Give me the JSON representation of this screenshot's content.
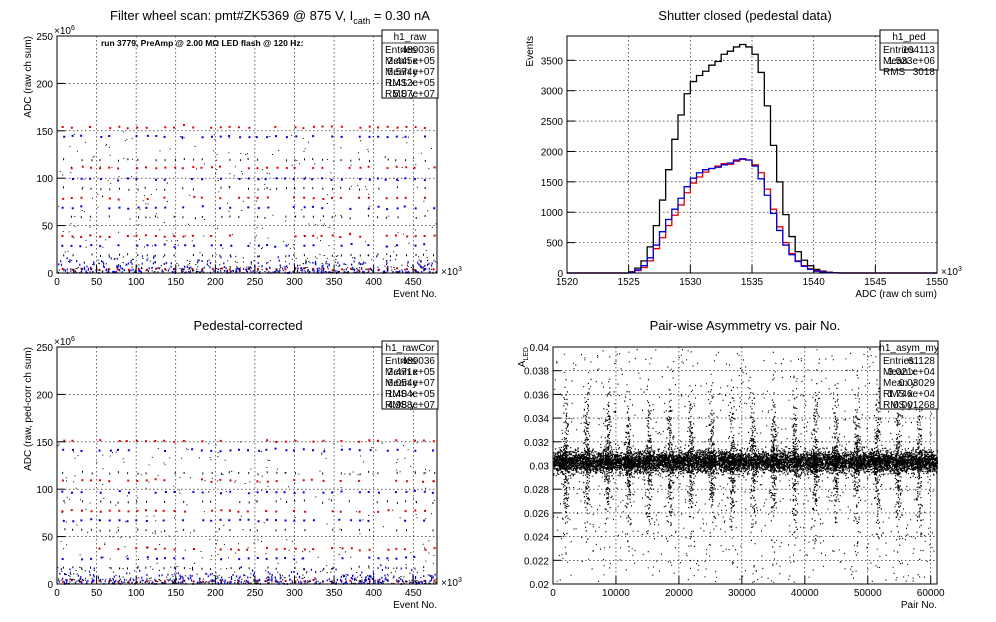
{
  "colors": {
    "red": "#e00000",
    "blue": "#0000dd",
    "black": "#000000"
  },
  "chart_data": [
    {
      "type": "scatter",
      "title": "Filter wheel scan: pmt#ZK5369 @   875 V, I",
      "title_sub": "cath",
      "title_tail": " = 0.30 nA",
      "annotation": "run 3779, PreAmp @ 2.00 MΩ LED flash @  120 Hz:",
      "xlabel": "Event No.",
      "ylabel": "ADC (raw ch sum)",
      "x_multiplier": "×10",
      "x_mult_exp": "3",
      "y_multiplier": "×10",
      "y_mult_exp": "6",
      "xlim": [
        0,
        480
      ],
      "ylim": [
        0,
        250
      ],
      "xticks": [
        0,
        50,
        100,
        150,
        200,
        250,
        300,
        350,
        400,
        450
      ],
      "yticks": [
        0,
        50,
        100,
        150,
        200,
        250
      ],
      "grid": true,
      "levels": [
        155,
        145,
        120,
        112,
        100,
        90,
        80,
        70,
        60,
        40,
        30,
        20,
        5
      ],
      "stats": {
        "name": "h1_raw",
        "rows": [
          {
            "label": "Entries",
            "value": "489036"
          },
          {
            "label": "Mean x",
            "value": "2.445e+05"
          },
          {
            "label": "Mean y",
            "value": "5.574e+07"
          },
          {
            "label": "RMS x",
            "value": "1.412e+05"
          },
          {
            "label": "RMS y",
            "value": "5.07e+07"
          }
        ]
      }
    },
    {
      "type": "line",
      "title": "Shutter closed (pedestal data)",
      "xlabel": "ADC (raw ch sum)",
      "ylabel": "Events",
      "x_multiplier": "×10",
      "x_mult_exp": "3",
      "xlim": [
        1520,
        1550
      ],
      "ylim": [
        0,
        3900
      ],
      "xticks": [
        1520,
        1525,
        1530,
        1535,
        1540,
        1545,
        1550
      ],
      "yticks": [
        0,
        500,
        1000,
        1500,
        2000,
        2500,
        3000,
        3500
      ],
      "grid": true,
      "bins": [
        1525,
        1525.5,
        1526,
        1526.5,
        1527,
        1527.5,
        1528,
        1528.5,
        1529,
        1529.5,
        1530,
        1530.5,
        1531,
        1531.5,
        1532,
        1532.5,
        1533,
        1533.5,
        1534,
        1534.5,
        1535,
        1535.5,
        1536,
        1536.5,
        1537,
        1537.5,
        1538,
        1538.5,
        1539,
        1539.5,
        1540,
        1540.5,
        1541,
        1541.5,
        1542
      ],
      "series": [
        {
          "color": "black",
          "values": [
            20,
            80,
            200,
            430,
            780,
            1200,
            1700,
            2200,
            2600,
            2950,
            3150,
            3250,
            3320,
            3420,
            3480,
            3600,
            3650,
            3720,
            3760,
            3720,
            3600,
            3300,
            2750,
            2100,
            1500,
            960,
            600,
            350,
            210,
            120,
            60,
            30,
            15,
            5,
            0
          ]
        },
        {
          "color": "red",
          "values": [
            10,
            40,
            90,
            200,
            400,
            580,
            780,
            950,
            1120,
            1320,
            1480,
            1580,
            1660,
            1720,
            1760,
            1800,
            1790,
            1840,
            1870,
            1860,
            1780,
            1650,
            1380,
            1050,
            760,
            500,
            320,
            200,
            120,
            70,
            40,
            20,
            10,
            5,
            0
          ]
        },
        {
          "color": "blue",
          "values": [
            10,
            50,
            120,
            250,
            460,
            680,
            880,
            1050,
            1230,
            1420,
            1560,
            1650,
            1700,
            1720,
            1740,
            1780,
            1810,
            1860,
            1880,
            1860,
            1760,
            1550,
            1280,
            980,
            700,
            460,
            300,
            190,
            110,
            60,
            30,
            15,
            8,
            3,
            0
          ]
        }
      ],
      "stats": {
        "name": "h1_ped",
        "rows": [
          {
            "label": "Entries",
            "value": "104113"
          },
          {
            "label": "Mean",
            "value": "1.533e+06"
          },
          {
            "label": "RMS",
            "value": "3018"
          }
        ]
      }
    },
    {
      "type": "scatter",
      "title": "Pedestal-corrected",
      "xlabel": "Event No.",
      "ylabel": "ADC (raw, ped-corr ch sum)",
      "x_multiplier": "×10",
      "x_mult_exp": "3",
      "y_multiplier": "×10",
      "y_mult_exp": "6",
      "xlim": [
        0,
        480
      ],
      "ylim": [
        0,
        250
      ],
      "xticks": [
        0,
        50,
        100,
        150,
        200,
        250,
        300,
        350,
        400,
        450
      ],
      "yticks": [
        0,
        50,
        100,
        150,
        200,
        250
      ],
      "grid": true,
      "levels": [
        152,
        142,
        118,
        110,
        98,
        88,
        78,
        68,
        58,
        38,
        28,
        18,
        4
      ],
      "stats": {
        "name": "h1_rawCor",
        "rows": [
          {
            "label": "Entries",
            "value": "489036"
          },
          {
            "label": "Mean x",
            "value": "2.471e+05"
          },
          {
            "label": "Mean y",
            "value": "6.054e+07"
          },
          {
            "label": "RMS x",
            "value": "1.404e+05"
          },
          {
            "label": "RMS y",
            "value": "4.988e+07"
          }
        ]
      }
    },
    {
      "type": "scatter",
      "title": "Pair-wise Asymmetry vs. pair No.",
      "xlabel": "Pair No.",
      "ylabel": "A",
      "ylabel_sub": "LED",
      "xlim": [
        0,
        61000
      ],
      "ylim": [
        0.02,
        0.04
      ],
      "xticks": [
        0,
        10000,
        20000,
        30000,
        40000,
        50000,
        60000
      ],
      "yticks": [
        0.02,
        0.022,
        0.024,
        0.026,
        0.028,
        0.03,
        0.032,
        0.034,
        0.036,
        0.038,
        0.04
      ],
      "grid": true,
      "band_center": 0.0303,
      "stats": {
        "name": "h1_asym_my",
        "rows": [
          {
            "label": "Entries",
            "value": "61128"
          },
          {
            "label": "Mean x",
            "value": "3.021e+04"
          },
          {
            "label": "Mean y",
            "value": "0.03029"
          },
          {
            "label": "RMS x",
            "value": "1.746e+04"
          },
          {
            "label": "RMS y",
            "value": "0.001268"
          }
        ]
      }
    }
  ]
}
